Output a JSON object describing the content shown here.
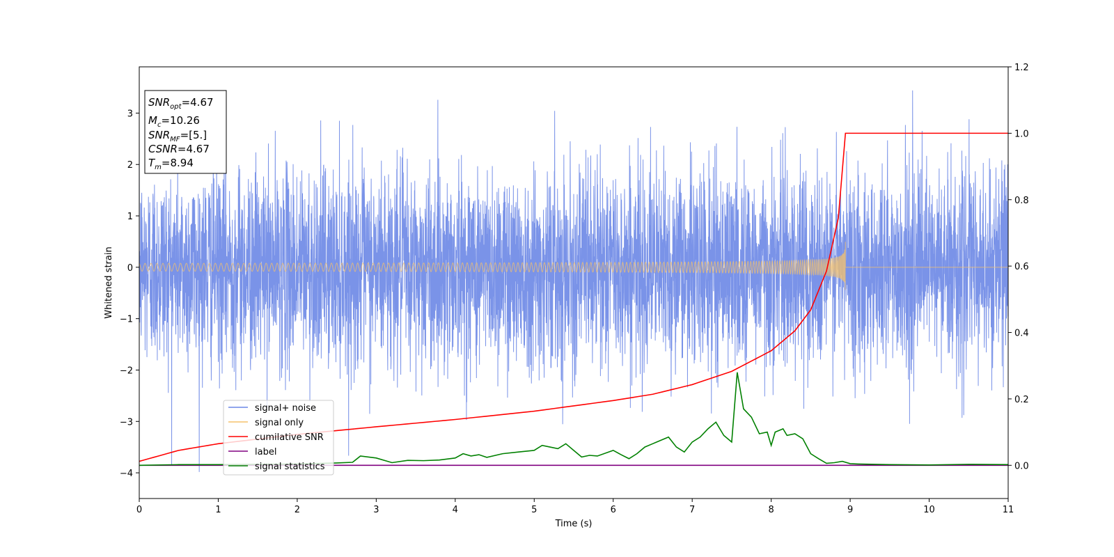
{
  "chart_data": {
    "type": "line",
    "xlabel": "Time (s)",
    "ylabel": "Whitened strain",
    "xlim": [
      0,
      11
    ],
    "ylim": [
      -4.5,
      3.9
    ],
    "y2lim": [
      -0.1,
      1.2
    ],
    "x_ticks": [
      "0",
      "1",
      "2",
      "3",
      "4",
      "5",
      "6",
      "7",
      "8",
      "9",
      "10",
      "11"
    ],
    "y_ticks": [
      "−4",
      "−3",
      "−2",
      "−1",
      "0",
      "1",
      "2",
      "3"
    ],
    "y2_ticks": [
      "0.0",
      "0.2",
      "0.4",
      "0.6",
      "0.8",
      "1.0",
      "1.2"
    ],
    "grid": false,
    "legend_position": "lower-left",
    "info_box": {
      "snr_opt": "=4.67",
      "mc": "=10.26",
      "snr_mf": "=[5.]",
      "csnr": "=4.67",
      "tm": "=8.94"
    },
    "series": [
      {
        "name": "signal+ noise",
        "color": "#6b87e6",
        "axis": "left",
        "kind": "gaussian-noise",
        "sigma": 0.95,
        "range": [
          -4.15,
          3.5
        ]
      },
      {
        "name": "signal only",
        "color": "#f5c26b",
        "axis": "left",
        "kind": "chirp",
        "merger_time": 8.94,
        "peak_amplitude": 0.55
      },
      {
        "name": "cumilative SNR",
        "color": "#ff0000",
        "axis": "right",
        "x": [
          0,
          0.5,
          1,
          2,
          3,
          4,
          5,
          6,
          6.5,
          7,
          7.5,
          8,
          8.3,
          8.5,
          8.7,
          8.85,
          8.94,
          11
        ],
        "y": [
          0.012,
          0.045,
          0.065,
          0.093,
          0.116,
          0.138,
          0.163,
          0.195,
          0.214,
          0.243,
          0.283,
          0.345,
          0.405,
          0.468,
          0.585,
          0.745,
          1.0,
          1.0
        ]
      },
      {
        "name": "label",
        "color": "#800080",
        "axis": "right",
        "x": [
          0,
          11
        ],
        "y": [
          0.0,
          0.0
        ]
      },
      {
        "name": "signal statistics",
        "color": "#008000",
        "axis": "right",
        "x": [
          0,
          0.5,
          1,
          1.5,
          2,
          2.5,
          2.7,
          2.8,
          3,
          3.2,
          3.4,
          3.6,
          3.8,
          4,
          4.1,
          4.2,
          4.3,
          4.4,
          4.6,
          4.8,
          5,
          5.1,
          5.2,
          5.3,
          5.4,
          5.5,
          5.6,
          5.7,
          5.8,
          6,
          6.1,
          6.2,
          6.3,
          6.4,
          6.5,
          6.6,
          6.7,
          6.8,
          6.9,
          7,
          7.1,
          7.2,
          7.3,
          7.4,
          7.5,
          7.57,
          7.65,
          7.75,
          7.85,
          7.95,
          8,
          8.05,
          8.15,
          8.2,
          8.3,
          8.4,
          8.5,
          8.6,
          8.7,
          8.8,
          8.9,
          9,
          9.1,
          9.5,
          10,
          10.5,
          11
        ],
        "y": [
          0.0,
          0.002,
          0.002,
          0.003,
          0.004,
          0.007,
          0.009,
          0.028,
          0.022,
          0.008,
          0.015,
          0.014,
          0.016,
          0.022,
          0.035,
          0.028,
          0.032,
          0.024,
          0.035,
          0.04,
          0.045,
          0.06,
          0.055,
          0.05,
          0.065,
          0.045,
          0.025,
          0.03,
          0.028,
          0.045,
          0.032,
          0.02,
          0.035,
          0.055,
          0.065,
          0.075,
          0.085,
          0.055,
          0.04,
          0.07,
          0.085,
          0.11,
          0.13,
          0.09,
          0.07,
          0.28,
          0.17,
          0.145,
          0.095,
          0.1,
          0.06,
          0.1,
          0.11,
          0.09,
          0.095,
          0.08,
          0.035,
          0.02,
          0.006,
          0.008,
          0.012,
          0.005,
          0.004,
          0.002,
          0.001,
          0.003,
          0.002
        ]
      }
    ]
  }
}
